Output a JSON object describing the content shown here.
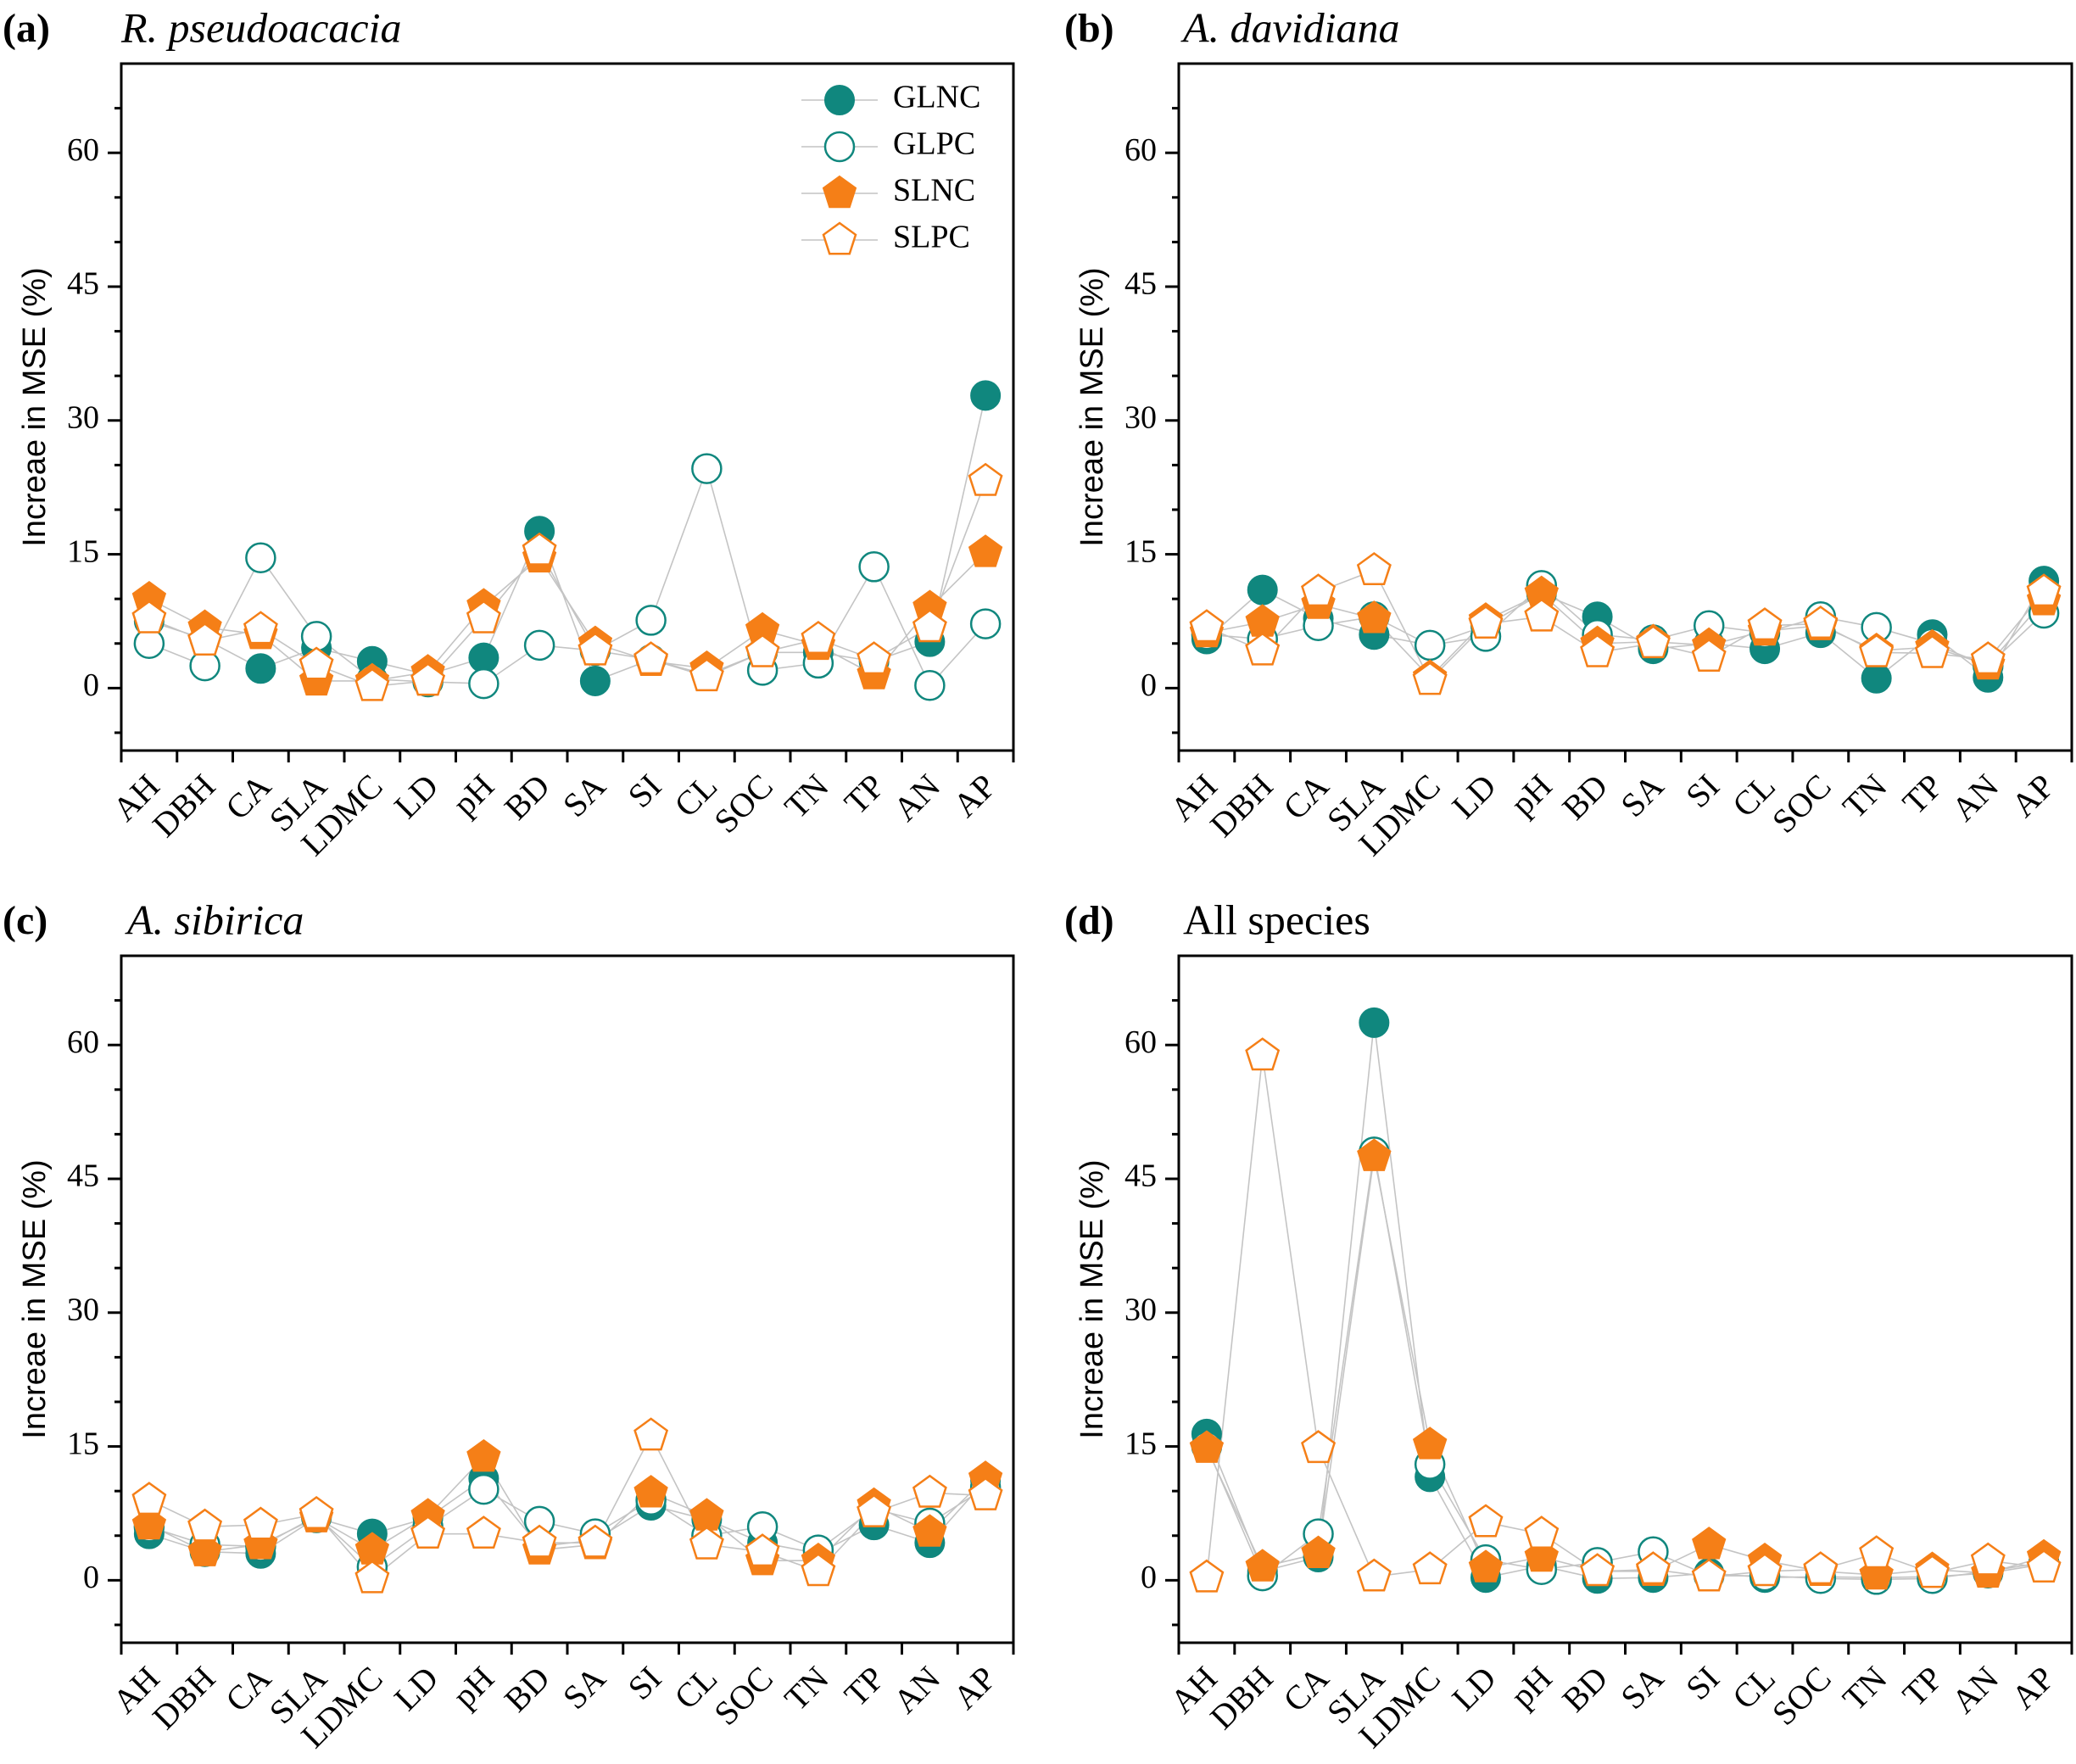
{
  "colors": {
    "teal": "#10877e",
    "orange": "#f57f17"
  },
  "yaxis_label": "Increae in MSE (%)",
  "yticks": [
    "0",
    "15",
    "30",
    "45",
    "60"
  ],
  "legend": [
    {
      "name": "GLNC",
      "marker": "circle-filled"
    },
    {
      "name": "GLPC",
      "marker": "circle-open"
    },
    {
      "name": "SLNC",
      "marker": "pentagon-filled"
    },
    {
      "name": "SLPC",
      "marker": "pentagon-open"
    }
  ],
  "chart_data": [
    {
      "type": "line",
      "label": "(a)",
      "title": "R. pseudoacacia",
      "xlabel": "",
      "ylabel": "Increae in MSE (%)",
      "ylim": [
        -7,
        70
      ],
      "categories": [
        "AH",
        "DBH",
        "CA",
        "SLA",
        "LDMC",
        "LD",
        "pH",
        "BD",
        "SA",
        "SI",
        "CL",
        "SOC",
        "TN",
        "TP",
        "AN",
        "AP"
      ],
      "series": [
        {
          "name": "GLNC",
          "values": [
            7.5,
            5.5,
            2.2,
            4.5,
            3.0,
            1.5,
            3.4,
            17.6,
            0.8,
            3.2,
            1.5,
            4.0,
            4.0,
            3.0,
            5.2,
            32.8
          ]
        },
        {
          "name": "GLPC",
          "values": [
            5.0,
            2.5,
            14.6,
            5.8,
            1.0,
            0.7,
            0.5,
            4.8,
            4.2,
            7.6,
            24.6,
            2.0,
            2.8,
            13.6,
            0.3,
            7.2
          ]
        },
        {
          "name": "SLNC",
          "values": [
            10.0,
            6.8,
            6.0,
            0.8,
            0.8,
            1.8,
            9.2,
            14.6,
            5.0,
            3.0,
            2.2,
            6.5,
            4.8,
            1.5,
            9.0,
            15.2
          ]
        },
        {
          "name": "SLPC",
          "values": [
            7.8,
            5.3,
            6.6,
            2.6,
            0.2,
            0.8,
            7.8,
            15.4,
            4.2,
            3.2,
            1.3,
            4.0,
            5.5,
            3.2,
            6.8,
            23.2
          ]
        }
      ]
    },
    {
      "type": "line",
      "label": "(b)",
      "title": "A. davidiana",
      "xlabel": "",
      "ylabel": "Increae in MSE (%)",
      "ylim": [
        -7,
        70
      ],
      "categories": [
        "AH",
        "DBH",
        "CA",
        "SLA",
        "LDMC",
        "LD",
        "pH",
        "BD",
        "SA",
        "SI",
        "CL",
        "SOC",
        "TN",
        "TP",
        "AN",
        "AP"
      ],
      "series": [
        {
          "name": "GLNC",
          "values": [
            5.5,
            11.0,
            7.8,
            6.0,
            4.8,
            7.0,
            10.6,
            8.0,
            4.4,
            5.0,
            4.4,
            6.2,
            1.1,
            6.0,
            1.2,
            12.0
          ]
        },
        {
          "name": "GLPC",
          "values": [
            6.0,
            5.5,
            7.0,
            8.0,
            4.8,
            5.8,
            11.5,
            6.0,
            5.4,
            7.0,
            6.2,
            8.0,
            6.8,
            5.0,
            2.5,
            8.4
          ]
        },
        {
          "name": "SLNC",
          "values": [
            6.2,
            7.4,
            9.4,
            7.8,
            1.2,
            7.6,
            10.6,
            5.0,
            5.2,
            4.8,
            6.4,
            7.0,
            4.2,
            4.6,
            2.6,
            9.8
          ]
        },
        {
          "name": "SLPC",
          "values": [
            6.8,
            4.2,
            10.8,
            13.2,
            0.9,
            7.2,
            8.0,
            4.0,
            5.0,
            3.5,
            7.0,
            7.2,
            4.0,
            3.9,
            3.2,
            10.8
          ]
        }
      ]
    },
    {
      "type": "line",
      "label": "(c)",
      "title": "A. sibirica",
      "xlabel": "",
      "ylabel": "Increae in MSE (%)",
      "ylim": [
        -7,
        70
      ],
      "categories": [
        "AH",
        "DBH",
        "CA",
        "SLA",
        "LDMC",
        "LD",
        "pH",
        "BD",
        "SA",
        "SI",
        "CL",
        "SOC",
        "TN",
        "TP",
        "AN",
        "AP"
      ],
      "series": [
        {
          "name": "GLNC",
          "values": [
            5.2,
            3.2,
            3.0,
            7.0,
            5.2,
            7.0,
            11.4,
            3.8,
            4.5,
            8.4,
            6.8,
            4.2,
            3.0,
            6.2,
            4.2,
            11.2
          ]
        },
        {
          "name": "GLPC",
          "values": [
            6.0,
            4.0,
            3.8,
            7.2,
            1.5,
            6.0,
            10.2,
            6.6,
            5.2,
            9.0,
            5.0,
            6.0,
            3.4,
            8.0,
            6.4,
            10.4
          ]
        },
        {
          "name": "SLNC",
          "values": [
            6.2,
            3.2,
            4.0,
            7.0,
            3.4,
            7.2,
            13.8,
            3.4,
            4.0,
            9.8,
            7.2,
            2.2,
            2.2,
            8.4,
            5.4,
            11.4
          ]
        },
        {
          "name": "SLPC",
          "values": [
            9.0,
            6.0,
            6.2,
            7.4,
            0.2,
            5.2,
            5.2,
            4.2,
            4.2,
            16.2,
            4.0,
            3.2,
            1.0,
            7.6,
            9.8,
            9.5
          ]
        }
      ]
    },
    {
      "type": "line",
      "label": "(d)",
      "title": "All species",
      "xlabel": "",
      "ylabel": "Increae in MSE (%)",
      "ylim": [
        -7,
        70
      ],
      "categories": [
        "AH",
        "DBH",
        "CA",
        "SLA",
        "LDMC",
        "LD",
        "pH",
        "BD",
        "SA",
        "SI",
        "CL",
        "SOC",
        "TN",
        "TP",
        "AN",
        "AP"
      ],
      "series": [
        {
          "name": "GLNC",
          "values": [
            16.4,
            1.0,
            2.6,
            62.5,
            11.6,
            0.3,
            1.6,
            0.2,
            0.3,
            0.8,
            0.3,
            0.4,
            0.3,
            0.4,
            0.8,
            1.8
          ]
        },
        {
          "name": "GLPC",
          "values": [
            15.0,
            0.5,
            5.2,
            48.0,
            13.0,
            2.3,
            1.2,
            2.0,
            3.2,
            0.5,
            0.5,
            0.2,
            0.1,
            0.2,
            1.0,
            2.0
          ]
        },
        {
          "name": "SLNC",
          "values": [
            14.8,
            1.5,
            3.0,
            47.5,
            15.2,
            1.4,
            2.6,
            1.0,
            1.0,
            4.0,
            2.2,
            1.0,
            0.6,
            1.2,
            0.8,
            2.6
          ]
        },
        {
          "name": "SLPC",
          "values": [
            0.3,
            58.8,
            14.8,
            0.4,
            1.2,
            6.5,
            5.2,
            1.0,
            1.2,
            0.4,
            1.0,
            1.2,
            3.0,
            0.8,
            2.2,
            1.4
          ]
        }
      ]
    }
  ]
}
